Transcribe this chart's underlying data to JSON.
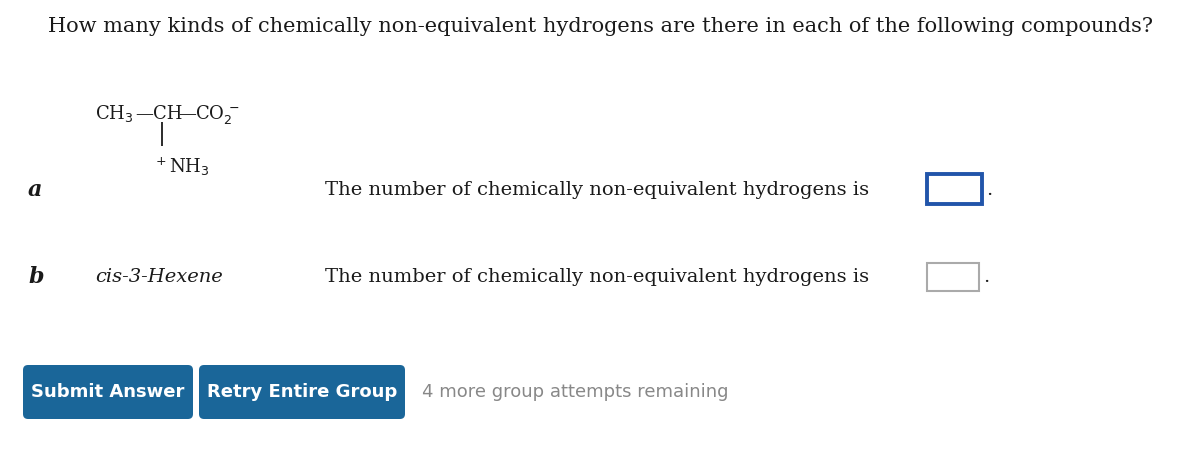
{
  "title": "How many kinds of chemically non-equivalent hydrogens are there in each of the following compounds?",
  "background_color": "#ffffff",
  "label_a": "a",
  "label_b": "b",
  "compound_b": "cis-3-Hexene",
  "question_text": "The number of chemically non-equivalent hydrogens is",
  "button1_text": "Submit Answer",
  "button2_text": "Retry Entire Group",
  "attempts_text": "4 more group attempts remaining",
  "button_color": "#1a6699",
  "button_text_color": "#ffffff",
  "box_color_a": "#2255aa",
  "box_color_b": "#aaaaaa",
  "font_color": "#1a1a1a",
  "gray_text_color": "#888888",
  "title_fontsize": 15,
  "body_fontsize": 14,
  "label_fontsize": 16,
  "struct_fontsize": 13,
  "btn_fontsize": 13
}
